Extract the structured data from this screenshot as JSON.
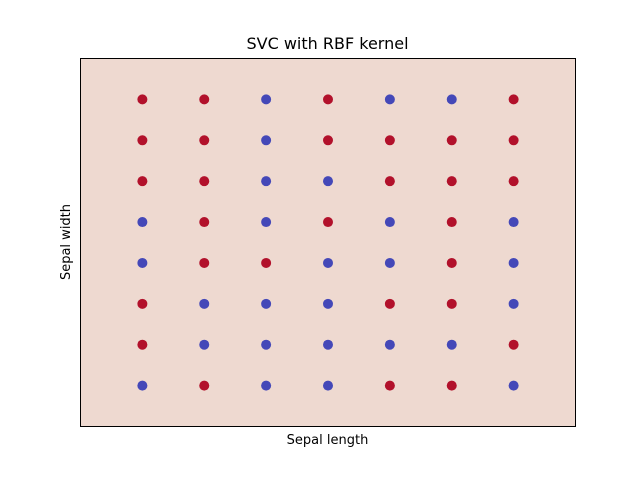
{
  "chart_data": {
    "type": "scatter",
    "title": "SVC with RBF kernel",
    "xlabel": "Sepal length",
    "ylabel": "Sepal width",
    "xlim": [
      0,
      8
    ],
    "ylim": [
      0,
      9
    ],
    "grid": false,
    "legend": "none",
    "background_color": "#eed9d0",
    "class_colors": {
      "red": "#b2112b",
      "blue": "#4448b8"
    },
    "points": [
      {
        "x": 1,
        "y": 8,
        "c": "red"
      },
      {
        "x": 2,
        "y": 8,
        "c": "red"
      },
      {
        "x": 3,
        "y": 8,
        "c": "blue"
      },
      {
        "x": 4,
        "y": 8,
        "c": "red"
      },
      {
        "x": 5,
        "y": 8,
        "c": "blue"
      },
      {
        "x": 6,
        "y": 8,
        "c": "blue"
      },
      {
        "x": 7,
        "y": 8,
        "c": "red"
      },
      {
        "x": 1,
        "y": 7,
        "c": "red"
      },
      {
        "x": 2,
        "y": 7,
        "c": "red"
      },
      {
        "x": 3,
        "y": 7,
        "c": "blue"
      },
      {
        "x": 4,
        "y": 7,
        "c": "red"
      },
      {
        "x": 5,
        "y": 7,
        "c": "red"
      },
      {
        "x": 6,
        "y": 7,
        "c": "red"
      },
      {
        "x": 7,
        "y": 7,
        "c": "red"
      },
      {
        "x": 1,
        "y": 6,
        "c": "red"
      },
      {
        "x": 2,
        "y": 6,
        "c": "red"
      },
      {
        "x": 3,
        "y": 6,
        "c": "blue"
      },
      {
        "x": 4,
        "y": 6,
        "c": "blue"
      },
      {
        "x": 5,
        "y": 6,
        "c": "red"
      },
      {
        "x": 6,
        "y": 6,
        "c": "red"
      },
      {
        "x": 7,
        "y": 6,
        "c": "red"
      },
      {
        "x": 1,
        "y": 5,
        "c": "blue"
      },
      {
        "x": 2,
        "y": 5,
        "c": "red"
      },
      {
        "x": 3,
        "y": 5,
        "c": "blue"
      },
      {
        "x": 4,
        "y": 5,
        "c": "red"
      },
      {
        "x": 5,
        "y": 5,
        "c": "blue"
      },
      {
        "x": 6,
        "y": 5,
        "c": "red"
      },
      {
        "x": 7,
        "y": 5,
        "c": "blue"
      },
      {
        "x": 1,
        "y": 4,
        "c": "blue"
      },
      {
        "x": 2,
        "y": 4,
        "c": "red"
      },
      {
        "x": 3,
        "y": 4,
        "c": "red"
      },
      {
        "x": 4,
        "y": 4,
        "c": "blue"
      },
      {
        "x": 5,
        "y": 4,
        "c": "blue"
      },
      {
        "x": 6,
        "y": 4,
        "c": "red"
      },
      {
        "x": 7,
        "y": 4,
        "c": "blue"
      },
      {
        "x": 1,
        "y": 3,
        "c": "red"
      },
      {
        "x": 2,
        "y": 3,
        "c": "blue"
      },
      {
        "x": 3,
        "y": 3,
        "c": "blue"
      },
      {
        "x": 4,
        "y": 3,
        "c": "blue"
      },
      {
        "x": 5,
        "y": 3,
        "c": "red"
      },
      {
        "x": 6,
        "y": 3,
        "c": "red"
      },
      {
        "x": 7,
        "y": 3,
        "c": "blue"
      },
      {
        "x": 1,
        "y": 2,
        "c": "red"
      },
      {
        "x": 2,
        "y": 2,
        "c": "blue"
      },
      {
        "x": 3,
        "y": 2,
        "c": "blue"
      },
      {
        "x": 4,
        "y": 2,
        "c": "blue"
      },
      {
        "x": 5,
        "y": 2,
        "c": "blue"
      },
      {
        "x": 6,
        "y": 2,
        "c": "blue"
      },
      {
        "x": 7,
        "y": 2,
        "c": "red"
      },
      {
        "x": 1,
        "y": 1,
        "c": "blue"
      },
      {
        "x": 2,
        "y": 1,
        "c": "red"
      },
      {
        "x": 3,
        "y": 1,
        "c": "blue"
      },
      {
        "x": 4,
        "y": 1,
        "c": "blue"
      },
      {
        "x": 5,
        "y": 1,
        "c": "red"
      },
      {
        "x": 6,
        "y": 1,
        "c": "red"
      },
      {
        "x": 7,
        "y": 1,
        "c": "blue"
      }
    ]
  }
}
